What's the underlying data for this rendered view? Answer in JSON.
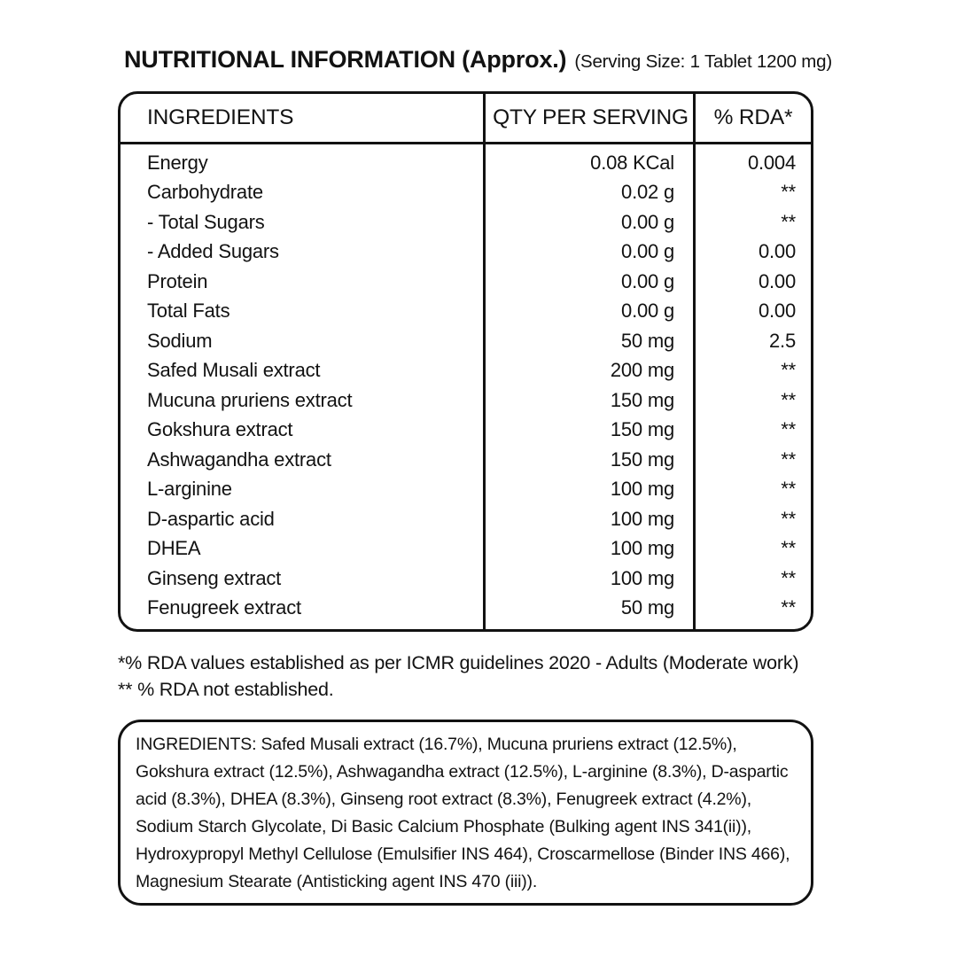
{
  "title": {
    "main": "NUTRITIONAL INFORMATION (Approx.)",
    "serving_size": "(Serving Size: 1 Tablet 1200 mg)"
  },
  "table": {
    "headers": [
      "INGREDIENTS",
      "QTY PER SERVING",
      "% RDA*"
    ],
    "rows": [
      {
        "name": "Energy",
        "qty": "0.08 KCal",
        "rda": "0.004"
      },
      {
        "name": "Carbohydrate",
        "qty": "0.02 g",
        "rda": "**"
      },
      {
        "name": "- Total Sugars",
        "qty": "0.00 g",
        "rda": "**"
      },
      {
        "name": "- Added Sugars",
        "qty": "0.00 g",
        "rda": "0.00"
      },
      {
        "name": "Protein",
        "qty": "0.00 g",
        "rda": "0.00"
      },
      {
        "name": "Total Fats",
        "qty": "0.00 g",
        "rda": "0.00"
      },
      {
        "name": "Sodium",
        "qty": "50 mg",
        "rda": "2.5"
      },
      {
        "name": "Safed Musali extract",
        "qty": "200 mg",
        "rda": "**"
      },
      {
        "name": "Mucuna pruriens extract",
        "qty": "150 mg",
        "rda": "**"
      },
      {
        "name": "Gokshura extract",
        "qty": "150 mg",
        "rda": "**"
      },
      {
        "name": "Ashwagandha extract",
        "qty": "150 mg",
        "rda": "**"
      },
      {
        "name": "L-arginine",
        "qty": "100 mg",
        "rda": "**"
      },
      {
        "name": "D-aspartic acid",
        "qty": "100 mg",
        "rda": "**"
      },
      {
        "name": "DHEA",
        "qty": "100 mg",
        "rda": "**"
      },
      {
        "name": "Ginseng extract",
        "qty": "100 mg",
        "rda": "**"
      },
      {
        "name": "Fenugreek extract",
        "qty": "50 mg",
        "rda": "**"
      }
    ]
  },
  "footnotes": [
    "*% RDA values established as per ICMR guidelines 2020 - Adults (Moderate work)",
    "** % RDA not established."
  ],
  "ingredients_box": {
    "text": "INGREDIENTS: Safed Musali extract (16.7%), Mucuna pruriens extract (12.5%), Gokshura extract (12.5%), Ashwagandha extract (12.5%), L-arginine (8.3%), D-aspartic acid (8.3%), DHEA (8.3%), Ginseng root extract (8.3%), Fenugreek extract (4.2%), Sodium Starch Glycolate, Di Basic Calcium Phosphate (Bulking agent INS 341(ii)), Hydroxypropyl Methyl Cellulose (Emulsifier INS 464), Croscarmellose (Binder INS 466), Magnesium Stearate (Antisticking agent INS 470 (iii))."
  },
  "colors": {
    "ink": "#121212",
    "background": "#ffffff"
  }
}
